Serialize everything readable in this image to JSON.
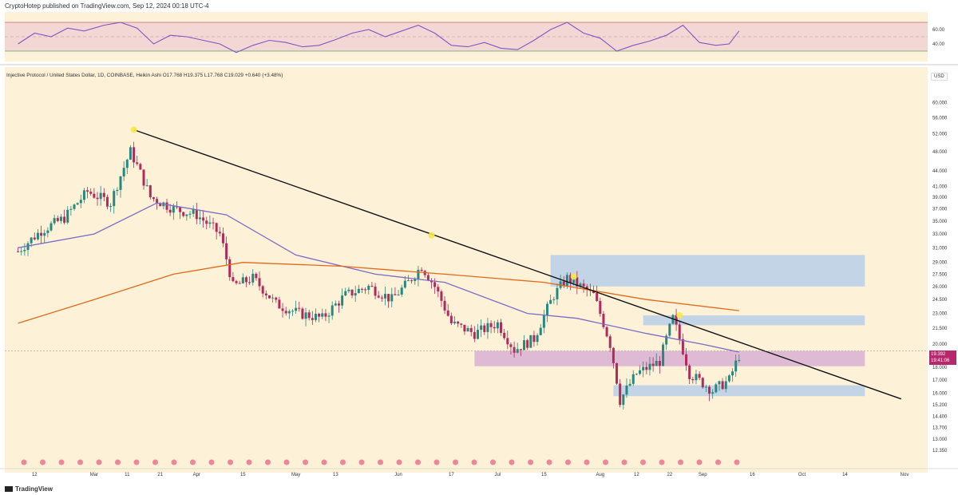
{
  "header": {
    "text": "CryptoHotep published on TradingView.com, Sep 12, 2024 00:18 UTC-4"
  },
  "legend": {
    "text": "Injective Protocol / United States Dollar, 1D, COINBASE, Heikin Ashi  O17.768  H19.375  L17.768  C19.029  +0.640 (+3.48%)"
  },
  "currency_label": "USD",
  "last_price": {
    "price": "19.392",
    "countdown": "19:41:06"
  },
  "brand": "TradingView",
  "colors": {
    "background": "#fdf1d8",
    "up_candle": "#26897f",
    "down_candle": "#b02a5c",
    "ma_short": "#7a6cc4",
    "ma_long": "#e06a1a",
    "trendline": "#111111",
    "zone_blue": "#b7cfe9",
    "zone_pink": "#d8b0d4",
    "rsi_line": "#7e57c2",
    "rsi_band": "#f3d7d4"
  },
  "chart_data": [
    {
      "type": "candlestick",
      "title": "Injective Protocol / United States Dollar, 1D, COINBASE, Heikin Ashi",
      "y_scale": "log",
      "ylim": [
        12.0,
        66.0
      ],
      "y_ticks": [
        "60.000",
        "56.000",
        "52.000",
        "48.000",
        "44.000",
        "41.000",
        "39.000",
        "37.000",
        "35.000",
        "33.000",
        "31.000",
        "29.000",
        "27.500",
        "26.000",
        "24.500",
        "23.000",
        "21.500",
        "20.000",
        "18.000",
        "17.000",
        "16.000",
        "15.200",
        "14.400",
        "13.700",
        "13.000",
        "12.350"
      ],
      "x_ticks": [
        "12",
        "Mar",
        "11",
        "21",
        "Apr",
        "15",
        "May",
        "13",
        "Jun",
        "17",
        "Jul",
        "15",
        "Aug",
        "12",
        "22",
        "Sep",
        "16",
        "Oct",
        "14",
        "Nov"
      ],
      "price_path": [
        [
          "2024-02-07",
          30.5
        ],
        [
          "2024-02-14",
          33.5
        ],
        [
          "2024-02-21",
          35.5
        ],
        [
          "2024-02-28",
          40.0
        ],
        [
          "2024-03-06",
          38.0
        ],
        [
          "2024-03-12",
          48.0
        ],
        [
          "2024-03-18",
          39.0
        ],
        [
          "2024-03-25",
          37.0
        ],
        [
          "2024-04-01",
          36.0
        ],
        [
          "2024-04-08",
          33.0
        ],
        [
          "2024-04-12",
          26.0
        ],
        [
          "2024-04-18",
          27.0
        ],
        [
          "2024-04-25",
          24.0
        ],
        [
          "2024-05-02",
          23.0
        ],
        [
          "2024-05-09",
          22.5
        ],
        [
          "2024-05-16",
          25.0
        ],
        [
          "2024-05-23",
          26.0
        ],
        [
          "2024-05-30",
          24.5
        ],
        [
          "2024-06-04",
          26.5
        ],
        [
          "2024-06-08",
          28.5
        ],
        [
          "2024-06-12",
          26.0
        ],
        [
          "2024-06-17",
          22.0
        ],
        [
          "2024-06-24",
          21.0
        ],
        [
          "2024-07-01",
          22.0
        ],
        [
          "2024-07-06",
          19.5
        ],
        [
          "2024-07-12",
          20.5
        ],
        [
          "2024-07-18",
          25.0
        ],
        [
          "2024-07-22",
          27.0
        ],
        [
          "2024-07-30",
          25.0
        ],
        [
          "2024-08-04",
          20.0
        ],
        [
          "2024-08-07",
          15.5
        ],
        [
          "2024-08-12",
          17.5
        ],
        [
          "2024-08-19",
          18.5
        ],
        [
          "2024-08-23",
          22.5
        ],
        [
          "2024-08-28",
          17.5
        ],
        [
          "2024-09-04",
          16.2
        ],
        [
          "2024-09-09",
          17.0
        ],
        [
          "2024-09-12",
          19.0
        ]
      ],
      "highlighted_highs": [
        {
          "date": "2024-03-13",
          "price": 53.0
        },
        {
          "date": "2024-06-11",
          "price": 32.8
        },
        {
          "date": "2024-07-24",
          "price": 27.2
        },
        {
          "date": "2024-08-25",
          "price": 22.8
        }
      ],
      "trendline": {
        "from": {
          "date": "2024-03-13",
          "price": 53.0
        },
        "to": {
          "date": "2024-10-31",
          "price": 15.6
        }
      },
      "moving_averages": [
        {
          "path": [
            [
              "2024-02-07",
              31.0
            ],
            [
              "2024-03-01",
              33.0
            ],
            [
              "2024-03-20",
              38.0
            ],
            [
              "2024-04-10",
              36.0
            ],
            [
              "2024-05-01",
              30.0
            ],
            [
              "2024-05-25",
              27.5
            ],
            [
              "2024-06-15",
              26.5
            ],
            [
              "2024-07-10",
              23.0
            ],
            [
              "2024-07-25",
              22.5
            ],
            [
              "2024-08-15",
              21.0
            ],
            [
              "2024-09-01",
              20.0
            ],
            [
              "2024-09-12",
              19.3
            ]
          ]
        },
        {
          "path": [
            [
              "2024-02-07",
              22.0
            ],
            [
              "2024-03-01",
              24.5
            ],
            [
              "2024-03-25",
              27.5
            ],
            [
              "2024-04-15",
              29.0
            ],
            [
              "2024-05-15",
              28.5
            ],
            [
              "2024-06-15",
              27.5
            ],
            [
              "2024-07-15",
              26.5
            ],
            [
              "2024-08-15",
              24.5
            ],
            [
              "2024-09-12",
              23.3
            ]
          ]
        }
      ],
      "zones": [
        {
          "type": "resistance",
          "from": "2024-07-17",
          "to": "2024-10-20",
          "low": 26.0,
          "high": 30.0
        },
        {
          "type": "resistance",
          "from": "2024-08-14",
          "to": "2024-10-20",
          "low": 21.8,
          "high": 22.8
        },
        {
          "type": "pivot",
          "from": "2024-06-24",
          "to": "2024-10-20",
          "low": 18.1,
          "high": 19.4
        },
        {
          "type": "support",
          "from": "2024-08-05",
          "to": "2024-10-20",
          "low": 15.8,
          "high": 16.6
        }
      ]
    },
    {
      "type": "line",
      "title": "RSI",
      "ylim": [
        20,
        80
      ],
      "y_ticks": [
        "60.00",
        "40.00"
      ],
      "band": [
        30,
        70
      ],
      "midline": 50,
      "values": [
        [
          "2024-02-07",
          40
        ],
        [
          "2024-02-12",
          55
        ],
        [
          "2024-02-17",
          50
        ],
        [
          "2024-02-22",
          62
        ],
        [
          "2024-02-27",
          58
        ],
        [
          "2024-03-04",
          66
        ],
        [
          "2024-03-09",
          70
        ],
        [
          "2024-03-14",
          62
        ],
        [
          "2024-03-19",
          40
        ],
        [
          "2024-03-24",
          52
        ],
        [
          "2024-03-29",
          50
        ],
        [
          "2024-04-03",
          45
        ],
        [
          "2024-04-08",
          40
        ],
        [
          "2024-04-13",
          28
        ],
        [
          "2024-04-18",
          38
        ],
        [
          "2024-04-23",
          45
        ],
        [
          "2024-04-28",
          42
        ],
        [
          "2024-05-03",
          36
        ],
        [
          "2024-05-08",
          38
        ],
        [
          "2024-05-13",
          46
        ],
        [
          "2024-05-18",
          55
        ],
        [
          "2024-05-23",
          60
        ],
        [
          "2024-05-28",
          50
        ],
        [
          "2024-06-02",
          58
        ],
        [
          "2024-06-07",
          66
        ],
        [
          "2024-06-12",
          55
        ],
        [
          "2024-06-17",
          38
        ],
        [
          "2024-06-22",
          36
        ],
        [
          "2024-06-27",
          42
        ],
        [
          "2024-07-02",
          34
        ],
        [
          "2024-07-07",
          32
        ],
        [
          "2024-07-12",
          45
        ],
        [
          "2024-07-17",
          60
        ],
        [
          "2024-07-22",
          70
        ],
        [
          "2024-07-27",
          55
        ],
        [
          "2024-08-01",
          48
        ],
        [
          "2024-08-06",
          30
        ],
        [
          "2024-08-11",
          38
        ],
        [
          "2024-08-16",
          44
        ],
        [
          "2024-08-21",
          52
        ],
        [
          "2024-08-26",
          66
        ],
        [
          "2024-08-31",
          42
        ],
        [
          "2024-09-05",
          38
        ],
        [
          "2024-09-09",
          40
        ],
        [
          "2024-09-12",
          58
        ]
      ]
    }
  ]
}
